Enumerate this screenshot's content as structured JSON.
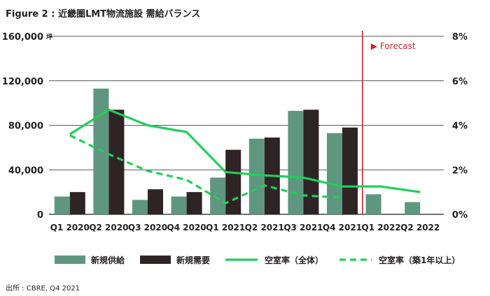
{
  "title": "Figure 2 : 近畿圏LMT物流施設 需給バランス",
  "source": "出所 : CBRE, Q4 2021",
  "colors": {
    "supply": "#5f9680",
    "demand": "#2e2426",
    "vacancy_all": "#1fcf5a",
    "vacancy_1yr": "#1fcf5a",
    "forecast_line": "#c0282d"
  },
  "chart_data": {
    "type": "bar",
    "title": "近畿圏LMT物流施設 需給バランス",
    "categories": [
      "Q1 2020",
      "Q2 2020",
      "Q3 2020",
      "Q4 2020",
      "Q1 2021",
      "Q2 2021",
      "Q3 2021",
      "Q4 2021",
      "Q1 2022",
      "Q2 2022"
    ],
    "y_left": {
      "ticks": [
        "160,000",
        "120,000",
        "80,000",
        "40,000",
        "0"
      ],
      "unit": "坪",
      "range": [
        0,
        160000
      ]
    },
    "y_right": {
      "ticks": [
        "8%",
        "6%",
        "4%",
        "2%",
        "0%"
      ],
      "range": [
        0,
        8
      ]
    },
    "series": [
      {
        "name": "新規供給",
        "type": "bar",
        "axis": "left",
        "values": [
          16000,
          113000,
          13000,
          16000,
          33000,
          68000,
          93000,
          73000,
          18000,
          11000
        ]
      },
      {
        "name": "新規需要",
        "type": "bar",
        "axis": "left",
        "values": [
          20000,
          94000,
          22500,
          20000,
          58000,
          69000,
          94000,
          78000,
          null,
          null
        ]
      },
      {
        "name": "空室率（全体）",
        "type": "line",
        "style": "solid",
        "axis": "right",
        "values": [
          3.6,
          4.7,
          4.0,
          3.7,
          1.9,
          1.75,
          1.65,
          1.25,
          1.25,
          1.0
        ]
      },
      {
        "name": "空室率（築1年以上）",
        "type": "line",
        "style": "dashed",
        "axis": "right",
        "values": [
          3.55,
          2.7,
          1.95,
          1.55,
          0.5,
          1.3,
          0.85,
          0.75,
          null,
          null
        ]
      }
    ],
    "annotation": {
      "text": "▶ Forecast",
      "after_category": "Q4 2021"
    },
    "legend_position": "bottom"
  }
}
